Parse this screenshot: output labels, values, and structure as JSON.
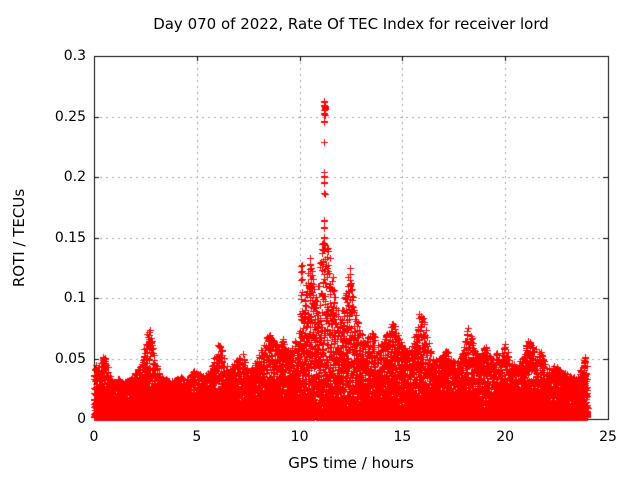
{
  "chart_data": {
    "type": "scatter",
    "title": "Day 070 of 2022, Rate Of TEC Index for receiver lord",
    "xlabel": "GPS time / hours",
    "ylabel": "ROTI / TECUs",
    "xlim": [
      0,
      25
    ],
    "ylim": [
      0,
      0.3
    ],
    "x_ticks": [
      0,
      5,
      10,
      15,
      20,
      25
    ],
    "x_tick_labels": [
      "0",
      "5",
      "10",
      "15",
      "20",
      "25"
    ],
    "y_ticks": [
      0,
      0.05,
      0.1,
      0.15,
      0.2,
      0.25,
      0.3
    ],
    "y_tick_labels": [
      "0",
      "0.05",
      "0.1",
      "0.15",
      "0.2",
      "0.25",
      "0.3"
    ],
    "grid": true,
    "legend": "none",
    "marker": "plus",
    "marker_color": "#ff0000",
    "grid_color": "#a8a8a8",
    "frame_color": "#000000",
    "time_range_hours": [
      0,
      24
    ],
    "envelope_description": "upper envelope of ROTI scatter vs GPS time, hours",
    "envelope": [
      [
        0.0,
        0.05
      ],
      [
        0.15,
        0.04
      ],
      [
        0.3,
        0.047
      ],
      [
        0.5,
        0.053
      ],
      [
        0.65,
        0.045
      ],
      [
        0.8,
        0.034
      ],
      [
        1.0,
        0.031
      ],
      [
        1.2,
        0.034
      ],
      [
        1.4,
        0.03
      ],
      [
        1.6,
        0.032
      ],
      [
        1.8,
        0.034
      ],
      [
        2.0,
        0.038
      ],
      [
        2.2,
        0.043
      ],
      [
        2.4,
        0.05
      ],
      [
        2.55,
        0.07
      ],
      [
        2.7,
        0.082
      ],
      [
        2.85,
        0.068
      ],
      [
        3.0,
        0.046
      ],
      [
        3.2,
        0.038
      ],
      [
        3.4,
        0.032
      ],
      [
        3.6,
        0.035
      ],
      [
        3.8,
        0.032
      ],
      [
        4.0,
        0.033
      ],
      [
        4.2,
        0.036
      ],
      [
        4.4,
        0.032
      ],
      [
        4.6,
        0.036
      ],
      [
        4.8,
        0.04
      ],
      [
        5.0,
        0.04
      ],
      [
        5.2,
        0.036
      ],
      [
        5.4,
        0.036
      ],
      [
        5.6,
        0.04
      ],
      [
        5.8,
        0.048
      ],
      [
        6.0,
        0.058
      ],
      [
        6.1,
        0.064
      ],
      [
        6.25,
        0.055
      ],
      [
        6.4,
        0.046
      ],
      [
        6.6,
        0.04
      ],
      [
        6.8,
        0.046
      ],
      [
        7.0,
        0.05
      ],
      [
        7.2,
        0.056
      ],
      [
        7.4,
        0.046
      ],
      [
        7.6,
        0.04
      ],
      [
        7.8,
        0.046
      ],
      [
        8.0,
        0.055
      ],
      [
        8.2,
        0.06
      ],
      [
        8.4,
        0.068
      ],
      [
        8.6,
        0.071
      ],
      [
        8.8,
        0.064
      ],
      [
        9.0,
        0.06
      ],
      [
        9.2,
        0.066
      ],
      [
        9.4,
        0.056
      ],
      [
        9.6,
        0.06
      ],
      [
        9.8,
        0.066
      ],
      [
        10.0,
        0.072
      ],
      [
        10.1,
        0.125
      ],
      [
        10.2,
        0.09
      ],
      [
        10.35,
        0.12
      ],
      [
        10.5,
        0.133
      ],
      [
        10.65,
        0.118
      ],
      [
        10.8,
        0.1
      ],
      [
        11.0,
        0.13
      ],
      [
        11.1,
        0.15
      ],
      [
        11.2,
        0.15
      ],
      [
        11.3,
        0.14
      ],
      [
        11.4,
        0.15
      ],
      [
        11.5,
        0.13
      ],
      [
        11.6,
        0.12
      ],
      [
        11.7,
        0.105
      ],
      [
        11.8,
        0.092
      ],
      [
        12.0,
        0.088
      ],
      [
        12.2,
        0.1
      ],
      [
        12.35,
        0.118
      ],
      [
        12.45,
        0.125
      ],
      [
        12.55,
        0.11
      ],
      [
        12.7,
        0.09
      ],
      [
        12.85,
        0.08
      ],
      [
        13.0,
        0.072
      ],
      [
        13.2,
        0.065
      ],
      [
        13.4,
        0.07
      ],
      [
        13.6,
        0.072
      ],
      [
        13.8,
        0.062
      ],
      [
        14.0,
        0.065
      ],
      [
        14.2,
        0.07
      ],
      [
        14.4,
        0.078
      ],
      [
        14.6,
        0.08
      ],
      [
        14.8,
        0.07
      ],
      [
        15.0,
        0.062
      ],
      [
        15.2,
        0.056
      ],
      [
        15.4,
        0.06
      ],
      [
        15.6,
        0.07
      ],
      [
        15.8,
        0.086
      ],
      [
        16.0,
        0.09
      ],
      [
        16.2,
        0.07
      ],
      [
        16.4,
        0.056
      ],
      [
        16.6,
        0.05
      ],
      [
        16.8,
        0.05
      ],
      [
        17.0,
        0.055
      ],
      [
        17.2,
        0.06
      ],
      [
        17.4,
        0.05
      ],
      [
        17.6,
        0.046
      ],
      [
        17.8,
        0.05
      ],
      [
        18.0,
        0.06
      ],
      [
        18.2,
        0.076
      ],
      [
        18.35,
        0.07
      ],
      [
        18.6,
        0.056
      ],
      [
        18.8,
        0.05
      ],
      [
        19.0,
        0.062
      ],
      [
        19.2,
        0.055
      ],
      [
        19.4,
        0.05
      ],
      [
        19.6,
        0.058
      ],
      [
        19.8,
        0.05
      ],
      [
        20.0,
        0.065
      ],
      [
        20.2,
        0.05
      ],
      [
        20.4,
        0.046
      ],
      [
        20.6,
        0.046
      ],
      [
        20.8,
        0.05
      ],
      [
        21.0,
        0.06
      ],
      [
        21.2,
        0.068
      ],
      [
        21.4,
        0.056
      ],
      [
        21.6,
        0.062
      ],
      [
        21.8,
        0.055
      ],
      [
        22.0,
        0.046
      ],
      [
        22.2,
        0.04
      ],
      [
        22.4,
        0.045
      ],
      [
        22.6,
        0.042
      ],
      [
        22.8,
        0.04
      ],
      [
        23.0,
        0.038
      ],
      [
        23.2,
        0.035
      ],
      [
        23.4,
        0.035
      ],
      [
        23.6,
        0.04
      ],
      [
        23.8,
        0.042
      ],
      [
        24.0,
        0.046
      ]
    ],
    "peak_columns": [
      {
        "t": 11.2,
        "values": [
          0.262,
          0.259,
          0.257,
          0.255,
          0.252,
          0.246,
          0.229,
          0.204,
          0.2,
          0.196,
          0.187,
          0.164,
          0.158,
          0.145
        ]
      },
      {
        "t": 11.24,
        "values": [
          0.258,
          0.251,
          0.132,
          0.124
        ]
      },
      {
        "t": 11.16,
        "values": [
          0.15,
          0.14,
          0.13
        ]
      },
      {
        "t": 10.5,
        "values": [
          0.133,
          0.128,
          0.124,
          0.119
        ]
      },
      {
        "t": 10.1,
        "values": [
          0.127,
          0.122,
          0.116
        ]
      },
      {
        "t": 12.45,
        "values": [
          0.125,
          0.12,
          0.115,
          0.111
        ]
      },
      {
        "t": 23.85,
        "values": [
          0.051,
          0.049,
          0.047,
          0.046,
          0.044,
          0.043
        ]
      }
    ],
    "render": {
      "seed": 42,
      "time_step_hours": 0.01,
      "points_per_step": 6,
      "density_exponent": 2.2,
      "marker_arm_px": 3,
      "grid_dash": [
        2,
        4
      ]
    }
  }
}
